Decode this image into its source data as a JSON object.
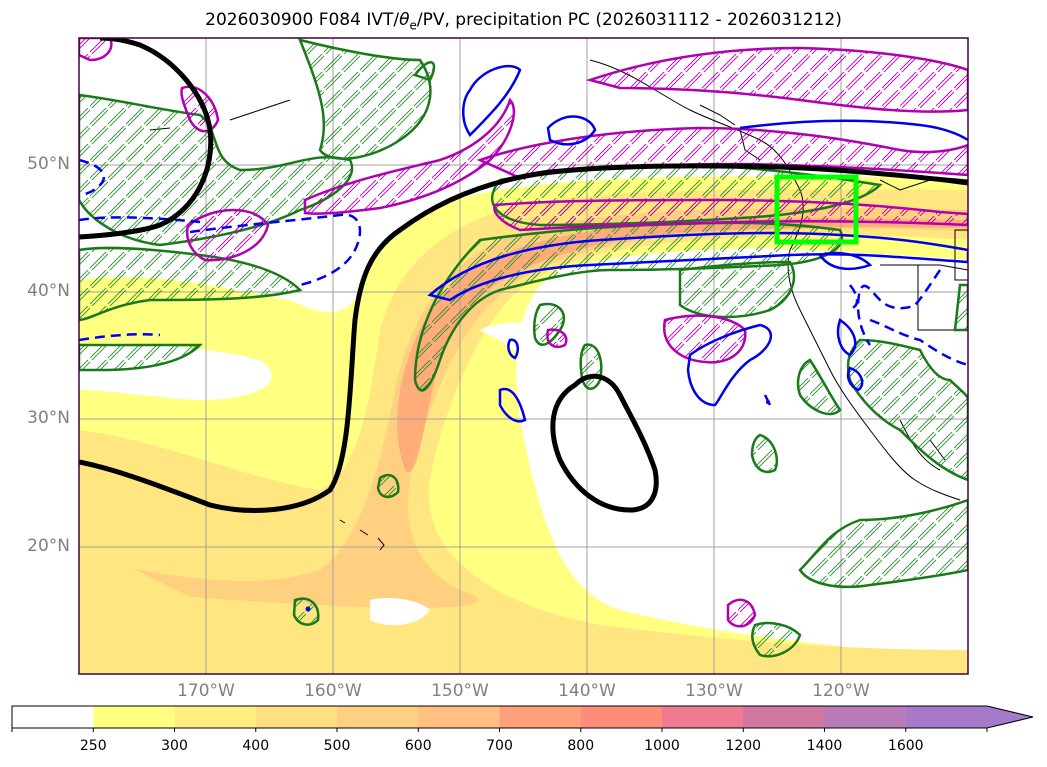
{
  "title": {
    "pre": "2026030900 F084 IVT/",
    "theta": "θ",
    "theta_sub": "e",
    "post": "/PV, precipitation PC (2026031112 - 2026031212)"
  },
  "map": {
    "lat_labels": [
      "50°N",
      "40°N",
      "30°N",
      "20°N"
    ],
    "lon_labels": [
      "170°W",
      "160°W",
      "150°W",
      "140°W",
      "130°W",
      "120°W"
    ],
    "lon_range": [
      180,
      110
    ],
    "lat_range": [
      10,
      60
    ],
    "target_box": {
      "lon_min": -125,
      "lon_max": -119,
      "lat_min": 44,
      "lat_max": 49,
      "color": "#00ff00"
    },
    "layers": [
      "IVT shading",
      "theta_e contour (black)",
      "PV contours (blue)",
      "precipitation PC hatching (green, magenta)"
    ]
  },
  "colorbar": {
    "levels": [
      "250",
      "300",
      "400",
      "500",
      "600",
      "700",
      "800",
      "1000",
      "1200",
      "1400",
      "1600"
    ],
    "colors": [
      "#ffffff",
      "#ffff80",
      "#ffef80",
      "#ffdf80",
      "#ffd080",
      "#ffc080",
      "#ffa07a",
      "#ff8c7a",
      "#f07a90",
      "#d077a0",
      "#b87ab8",
      "#a67ac8"
    ],
    "extend": "max"
  }
}
